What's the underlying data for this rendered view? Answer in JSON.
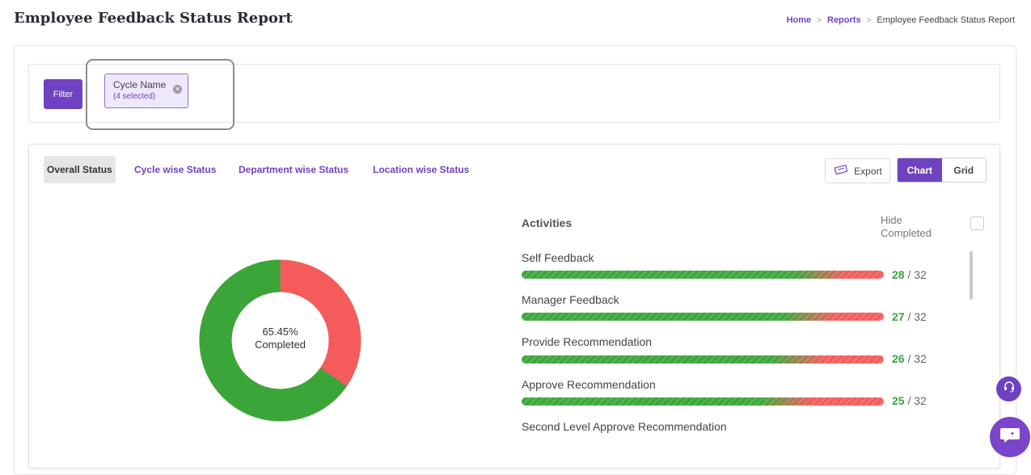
{
  "page": {
    "title": "Employee Feedback Status Report"
  },
  "breadcrumb": {
    "home": "Home",
    "reports": "Reports",
    "current": "Employee Feedback Status Report",
    "separator": ">"
  },
  "filter": {
    "button_label": "Filter",
    "chip": {
      "title": "Cycle Name",
      "subtitle": "(4 selected)"
    }
  },
  "tabs": [
    "Overall Status",
    "Cycle wise Status",
    "Department wise Status",
    "Location wise Status"
  ],
  "actions": {
    "export_label": "Export",
    "chart_label": "Chart",
    "grid_label": "Grid",
    "view_selected": "Chart"
  },
  "donut": {
    "line1": "65.45%",
    "line2": "Completed",
    "completed_percent": 65.45,
    "completed_color": "#3aa63a",
    "pending_color": "#f45b5b"
  },
  "activities": {
    "header": "Activities",
    "hide_completed_label": "Hide Completed",
    "items": [
      {
        "name": "Self Feedback",
        "done": "28",
        "sep": "/",
        "total": "32",
        "completed": 28,
        "total_n": 32
      },
      {
        "name": "Manager Feedback",
        "done": "27",
        "sep": "/",
        "total": "32",
        "completed": 27,
        "total_n": 32
      },
      {
        "name": "Provide Recommendation",
        "done": "26",
        "sep": "/",
        "total": "32",
        "completed": 26,
        "total_n": 32
      },
      {
        "name": "Approve Recommendation",
        "done": "25",
        "sep": "/",
        "total": "32",
        "completed": 25,
        "total_n": 32
      },
      {
        "name": "Second Level Approve Recommendation"
      }
    ]
  },
  "colors": {
    "accent": "#6f42c1",
    "success": "#3aa63a",
    "danger": "#f45b5b"
  }
}
